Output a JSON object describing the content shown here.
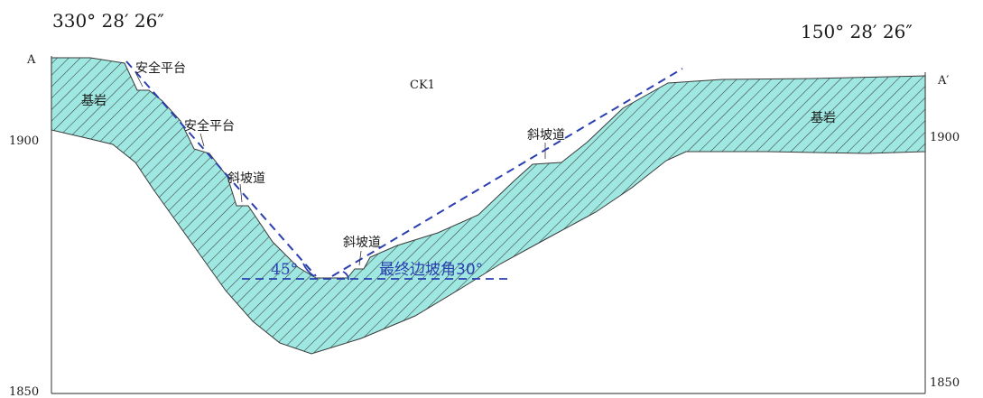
{
  "header": {
    "left_azimuth": "330° 28′ 26″",
    "right_azimuth": "150° 28′ 26″"
  },
  "section": {
    "start_label": "A",
    "end_label": "A′",
    "borehole": "CK1"
  },
  "elevation_ticks": {
    "left_upper": "1900",
    "left_lower": "1850",
    "right_upper": "1900",
    "right_lower": "1850"
  },
  "labels": {
    "bedrock_left": "基岩",
    "bedrock_right": "基岩",
    "safety_platform_1": "安全平台",
    "safety_platform_2": "安全平台",
    "ramp_left": "斜坡道",
    "ramp_bottom": "斜坡道",
    "ramp_right": "斜坡道",
    "angle_left": "45°",
    "final_slope_angle": "最终边坡角30°"
  },
  "colors": {
    "bedrock_fill": "#9fe8e2",
    "hatch": "#3a3a3a",
    "design_line": "#2b3fb0",
    "frame": "#555555"
  }
}
